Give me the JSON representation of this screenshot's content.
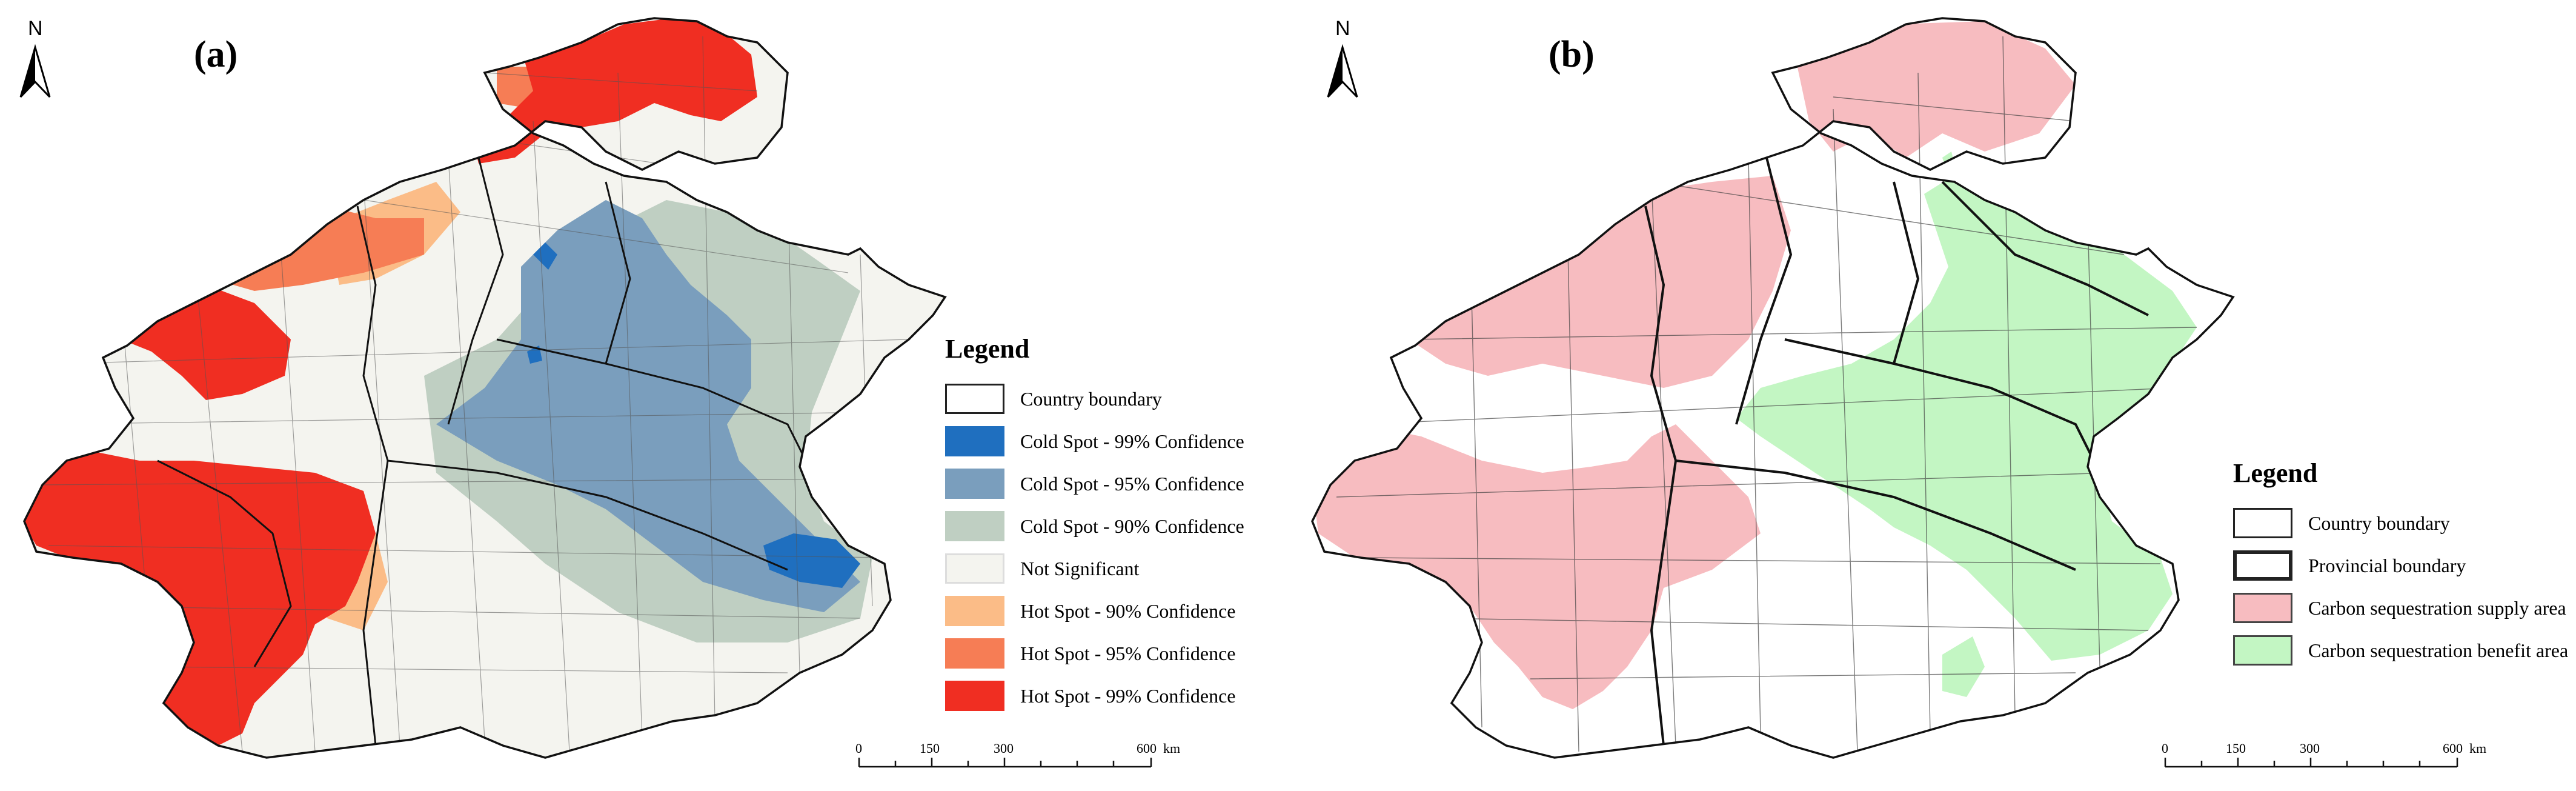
{
  "panels": [
    {
      "label": "(a)",
      "north": "N",
      "legend": {
        "title": "Legend",
        "items": [
          {
            "label": "Country boundary",
            "color": "#ffffff"
          },
          {
            "label": "Cold Spot - 99% Confidence",
            "color": "#1f6fbf"
          },
          {
            "label": "Cold Spot - 95% Confidence",
            "color": "#7a9ebd"
          },
          {
            "label": "Cold Spot - 90% Confidence",
            "color": "#bfcfc2"
          },
          {
            "label": "Not Significant",
            "color": "#f4f4ef"
          },
          {
            "label": "Hot Spot - 90% Confidence",
            "color": "#fbbc87"
          },
          {
            "label": "Hot Spot - 95% Confidence",
            "color": "#f67d55"
          },
          {
            "label": "Hot Spot - 99% Confidence",
            "color": "#f02e22"
          }
        ]
      },
      "scale": {
        "ticks": [
          "0",
          "150",
          "300",
          "600"
        ],
        "unit": "km"
      }
    },
    {
      "label": "(b)",
      "north": "N",
      "legend": {
        "title": "Legend",
        "items": [
          {
            "label": "Country boundary",
            "color": "#ffffff"
          },
          {
            "label": "Provincial boundary",
            "color": "#ffffff"
          },
          {
            "label": "Carbon sequestration supply area",
            "color": "#f7bcc0"
          },
          {
            "label": "Carbon sequestration benefit area",
            "color": "#c3f6c3"
          }
        ]
      },
      "scale": {
        "ticks": [
          "0",
          "150",
          "300",
          "600"
        ],
        "unit": "km"
      }
    }
  ]
}
